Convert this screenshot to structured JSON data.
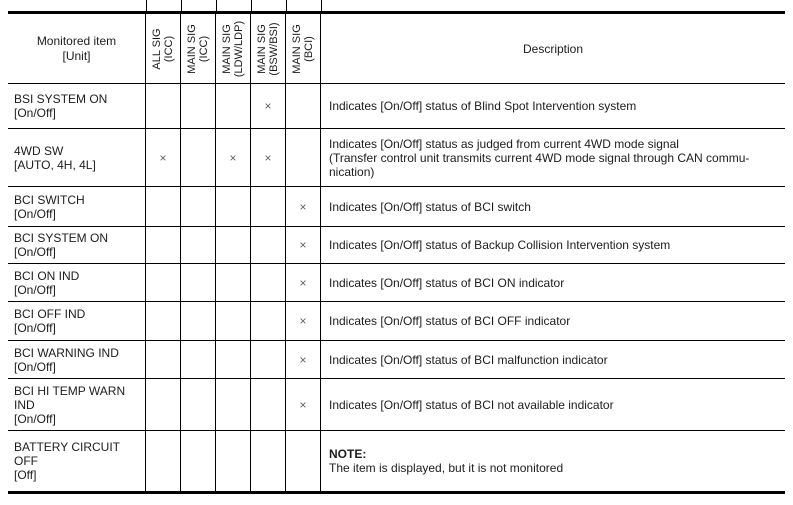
{
  "colors": {
    "line": "#000000",
    "text": "#1c1c1c",
    "mark": "#5f5f5f",
    "background": "#ffffff"
  },
  "table": {
    "header": {
      "item_col": {
        "line1": "Monitored item",
        "line2": "[Unit]"
      },
      "signal_cols": [
        {
          "line1": "ALL SIG",
          "line2": "(ICC)"
        },
        {
          "line1": "MAIN SIG",
          "line2": "(ICC)"
        },
        {
          "line1": "MAIN SIG",
          "line2": "(LDW/LDP)"
        },
        {
          "line1": "MAIN SIG",
          "line2": "(BSW/BSI)"
        },
        {
          "line1": "MAIN SIG",
          "line2": "(BCI)"
        }
      ],
      "description_col": "Description"
    },
    "mark_symbol": "×",
    "rows": [
      {
        "item_lines": [
          "BSI SYSTEM ON",
          "[On/Off]"
        ],
        "marks": [
          false,
          false,
          false,
          true,
          false
        ],
        "description_lines": [
          "Indicates [On/Off] status of Blind Spot Intervention system"
        ],
        "bold_first_line": false
      },
      {
        "item_lines": [
          "4WD SW",
          "[AUTO, 4H, 4L]"
        ],
        "marks": [
          true,
          false,
          true,
          true,
          false
        ],
        "description_lines": [
          "Indicates [On/Off] status as judged from current 4WD mode signal",
          "(Transfer control unit transmits current 4WD mode signal through CAN commu-",
          "nication)"
        ],
        "bold_first_line": false
      },
      {
        "item_lines": [
          "BCI SWITCH",
          "[On/Off]"
        ],
        "marks": [
          false,
          false,
          false,
          false,
          true
        ],
        "description_lines": [
          "Indicates [On/Off] status of BCI switch"
        ],
        "bold_first_line": false
      },
      {
        "item_lines": [
          "BCI SYSTEM ON",
          "[On/Off]"
        ],
        "marks": [
          false,
          false,
          false,
          false,
          true
        ],
        "description_lines": [
          "Indicates [On/Off] status of Backup Collision Intervention system"
        ],
        "bold_first_line": false
      },
      {
        "item_lines": [
          "BCI ON IND",
          "[On/Off]"
        ],
        "marks": [
          false,
          false,
          false,
          false,
          true
        ],
        "description_lines": [
          "Indicates [On/Off] status of BCI ON indicator"
        ],
        "bold_first_line": false
      },
      {
        "item_lines": [
          "BCI OFF IND",
          "[On/Off]"
        ],
        "marks": [
          false,
          false,
          false,
          false,
          true
        ],
        "description_lines": [
          "Indicates [On/Off] status of BCI OFF indicator"
        ],
        "bold_first_line": false
      },
      {
        "item_lines": [
          "BCI WARNING IND",
          "[On/Off]"
        ],
        "marks": [
          false,
          false,
          false,
          false,
          true
        ],
        "description_lines": [
          "Indicates [On/Off] status of BCI malfunction indicator"
        ],
        "bold_first_line": false
      },
      {
        "item_lines": [
          "BCI HI TEMP WARN",
          "IND",
          "[On/Off]"
        ],
        "marks": [
          false,
          false,
          false,
          false,
          true
        ],
        "description_lines": [
          "Indicates [On/Off] status of BCI not available indicator"
        ],
        "bold_first_line": false
      },
      {
        "item_lines": [
          "BATTERY CIRCUIT",
          "OFF",
          "[Off]"
        ],
        "marks": [
          false,
          false,
          false,
          false,
          false
        ],
        "description_lines": [
          "NOTE:",
          "The item is displayed, but it is not monitored"
        ],
        "bold_first_line": true
      }
    ]
  }
}
